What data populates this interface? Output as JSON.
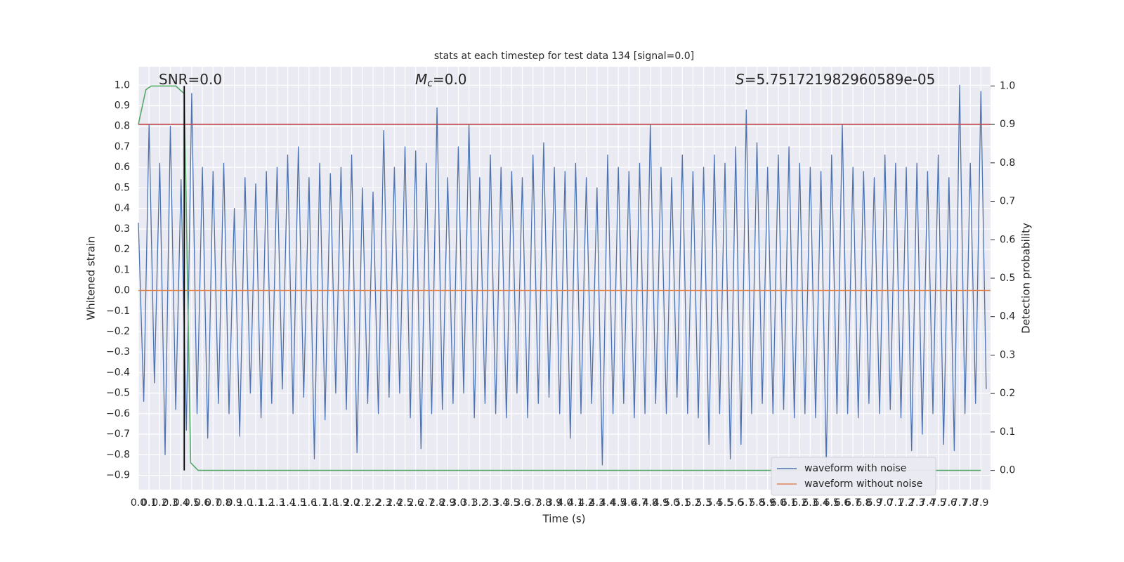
{
  "chart_data": {
    "type": "line",
    "title": "stats at each timestep for test data 134 [signal=0.0]",
    "xlabel": "Time (s)",
    "ylabel": "Whitened strain",
    "y2label": "Detection probability",
    "grid": true,
    "legend": "lower right",
    "annotations": [
      {
        "text": "SNR=0.0"
      },
      {
        "symbol": "M",
        "subscript": "c",
        "text": "=0.0"
      },
      {
        "symbol": "S",
        "text": "=5.751721982960589e-05"
      }
    ],
    "xlim": [
      0,
      7.99
    ],
    "ylim": [
      -0.97,
      1.09
    ],
    "y2lim": [
      -0.05,
      1.05
    ],
    "xticks": [
      {
        "value": 0,
        "label": "0.0"
      },
      0.1,
      0.2,
      0.3,
      0.4,
      0.5,
      0.6,
      0.7,
      0.8,
      0.9,
      {
        "value": 1,
        "label": "1.0"
      },
      1.1,
      1.2,
      1.3,
      1.4,
      1.5,
      1.6,
      1.7,
      1.8,
      1.9,
      {
        "value": 2,
        "label": "2.0"
      },
      2.1,
      2.2,
      2.3,
      2.4,
      2.5,
      2.6,
      2.7,
      2.8,
      2.9,
      {
        "value": 3,
        "label": "3.0"
      },
      3.1,
      3.2,
      3.3,
      3.4,
      3.5,
      3.6,
      3.7,
      3.8,
      3.9,
      {
        "value": 4,
        "label": "4.0"
      },
      4.1,
      4.2,
      4.3,
      4.4,
      4.5,
      4.6,
      4.7,
      4.8,
      4.9,
      {
        "value": 5,
        "label": "5.0"
      },
      5.1,
      5.2,
      5.3,
      5.4,
      5.5,
      5.6,
      5.7,
      5.8,
      5.9,
      {
        "value": 6,
        "label": "6.0"
      },
      6.1,
      6.2,
      6.3,
      6.4,
      6.5,
      6.6,
      6.7,
      6.8,
      6.9,
      {
        "value": 7,
        "label": "7.0"
      },
      7.1,
      7.2,
      7.3,
      7.4,
      7.5,
      7.6,
      7.7,
      7.8,
      7.9
    ],
    "yticks": [
      {
        "value": -0.9,
        "label": "−0.9"
      },
      {
        "value": -0.8,
        "label": "−0.8"
      },
      {
        "value": -0.7,
        "label": "−0.7"
      },
      {
        "value": -0.6,
        "label": "−0.6"
      },
      {
        "value": -0.5,
        "label": "−0.5"
      },
      {
        "value": -0.4,
        "label": "−0.4"
      },
      {
        "value": -0.3,
        "label": "−0.3"
      },
      {
        "value": -0.2,
        "label": "−0.2"
      },
      {
        "value": -0.1,
        "label": "−0.1"
      },
      {
        "value": 0,
        "label": "0.0"
      },
      0.1,
      0.2,
      0.3,
      0.4,
      0.5,
      0.6,
      0.7,
      0.8,
      0.9,
      {
        "value": 1,
        "label": "1.0"
      }
    ],
    "y2ticks": [
      {
        "value": 0,
        "label": "0.0"
      },
      0.1,
      0.2,
      0.3,
      0.4,
      0.5,
      0.6,
      0.7,
      0.8,
      0.9,
      {
        "value": 1,
        "label": "1.0"
      }
    ],
    "series": [
      {
        "name": "waveform with noise",
        "color": "#4c72b0",
        "x": [
          0,
          0.05,
          0.1,
          0.15,
          0.2,
          0.25,
          0.3,
          0.35,
          0.4,
          0.45,
          0.5,
          0.55,
          0.6,
          0.65,
          0.7,
          0.75,
          0.8,
          0.85,
          0.9,
          0.95,
          1,
          1.05,
          1.1,
          1.15,
          1.2,
          1.25,
          1.3,
          1.35,
          1.4,
          1.45,
          1.5,
          1.55,
          1.6,
          1.65,
          1.7,
          1.75,
          1.8,
          1.85,
          1.9,
          1.95,
          2,
          2.05,
          2.1,
          2.15,
          2.2,
          2.25,
          2.3,
          2.35,
          2.4,
          2.45,
          2.5,
          2.55,
          2.6,
          2.65,
          2.7,
          2.75,
          2.8,
          2.85,
          2.9,
          2.95,
          3,
          3.05,
          3.1,
          3.15,
          3.2,
          3.25,
          3.3,
          3.35,
          3.4,
          3.45,
          3.5,
          3.55,
          3.6,
          3.65,
          3.7,
          3.75,
          3.8,
          3.85,
          3.9,
          3.95,
          4,
          4.05,
          4.1,
          4.15,
          4.2,
          4.25,
          4.3,
          4.35,
          4.4,
          4.45,
          4.5,
          4.55,
          4.6,
          4.65,
          4.7,
          4.75,
          4.8,
          4.85,
          4.9,
          4.95,
          5,
          5.05,
          5.1,
          5.15,
          5.2,
          5.25,
          5.3,
          5.35,
          5.4,
          5.45,
          5.5,
          5.55,
          5.6,
          5.65,
          5.7,
          5.75,
          5.8,
          5.85,
          5.9,
          5.95,
          6,
          6.05,
          6.1,
          6.15,
          6.2,
          6.25,
          6.3,
          6.35,
          6.4,
          6.45,
          6.5,
          6.55,
          6.6,
          6.65,
          6.7,
          6.75,
          6.8,
          6.85,
          6.9,
          6.95,
          7,
          7.05,
          7.1,
          7.15,
          7.2,
          7.25,
          7.3,
          7.35,
          7.4,
          7.45,
          7.5,
          7.55,
          7.6,
          7.65,
          7.7,
          7.75,
          7.8,
          7.85,
          7.9,
          7.95
        ],
        "values": [
          0.33,
          -0.54,
          0.81,
          -0.45,
          0.62,
          -0.8,
          0.8,
          -0.58,
          0.54,
          -0.68,
          0.96,
          -0.6,
          0.6,
          -0.72,
          0.58,
          -0.55,
          0.62,
          -0.6,
          0.4,
          -0.71,
          0.55,
          -0.5,
          0.52,
          -0.62,
          0.58,
          -0.55,
          0.6,
          -0.48,
          0.66,
          -0.6,
          0.7,
          -0.52,
          0.55,
          -0.82,
          0.62,
          -0.63,
          0.57,
          -0.5,
          0.6,
          -0.58,
          0.66,
          -0.79,
          0.5,
          -0.55,
          0.48,
          -0.6,
          0.78,
          -0.52,
          0.6,
          -0.5,
          0.7,
          -0.62,
          0.68,
          -0.77,
          0.62,
          -0.6,
          0.89,
          -0.58,
          0.55,
          -0.55,
          0.7,
          -0.5,
          0.81,
          -0.62,
          0.55,
          -0.55,
          0.66,
          -0.6,
          0.6,
          -0.62,
          0.58,
          -0.5,
          0.55,
          -0.62,
          0.66,
          -0.55,
          0.72,
          -0.52,
          0.6,
          -0.6,
          0.58,
          -0.72,
          0.62,
          -0.6,
          0.55,
          -0.55,
          0.5,
          -0.85,
          0.66,
          -0.6,
          0.6,
          -0.55,
          0.58,
          -0.62,
          0.62,
          -0.6,
          0.81,
          -0.55,
          0.6,
          -0.6,
          0.55,
          -0.52,
          0.66,
          -0.6,
          0.58,
          -0.62,
          0.6,
          -0.75,
          0.66,
          -0.6,
          0.62,
          -0.82,
          0.7,
          -0.75,
          0.88,
          -0.6,
          0.72,
          -0.55,
          0.6,
          -0.6,
          0.66,
          -0.58,
          0.7,
          -0.62,
          0.62,
          -0.6,
          0.6,
          -0.62,
          0.58,
          -0.85,
          0.66,
          -0.6,
          0.81,
          -0.6,
          0.6,
          -0.62,
          0.58,
          -0.55,
          0.55,
          -0.6,
          0.66,
          -0.58,
          0.62,
          -0.62,
          0.6,
          -0.78,
          0.62,
          -0.7,
          0.58,
          -0.6,
          0.66,
          -0.75,
          0.55,
          -0.78,
          1.0,
          -0.6,
          0.62,
          -0.55,
          0.97,
          -0.48
        ]
      },
      {
        "name": "waveform without noise",
        "color": "#dd8452",
        "x": [
          0,
          7.99
        ],
        "values": [
          0,
          0
        ]
      },
      {
        "color": "#55a868",
        "axis": "y2",
        "x": [
          0,
          0.07,
          0.12,
          0.35,
          0.43,
          0.49,
          0.56,
          7.9
        ],
        "values": [
          0.9,
          0.99,
          1.0,
          1.0,
          0.98,
          0.02,
          0.0,
          0.0
        ]
      }
    ],
    "hlines": [
      {
        "y": 0.9,
        "axis": "y2",
        "color": "#c44e52"
      }
    ],
    "vlines": [
      {
        "x": 0.43,
        "ymin": 0,
        "ymax": 1,
        "axis": "y2",
        "color": "#000000"
      }
    ]
  }
}
